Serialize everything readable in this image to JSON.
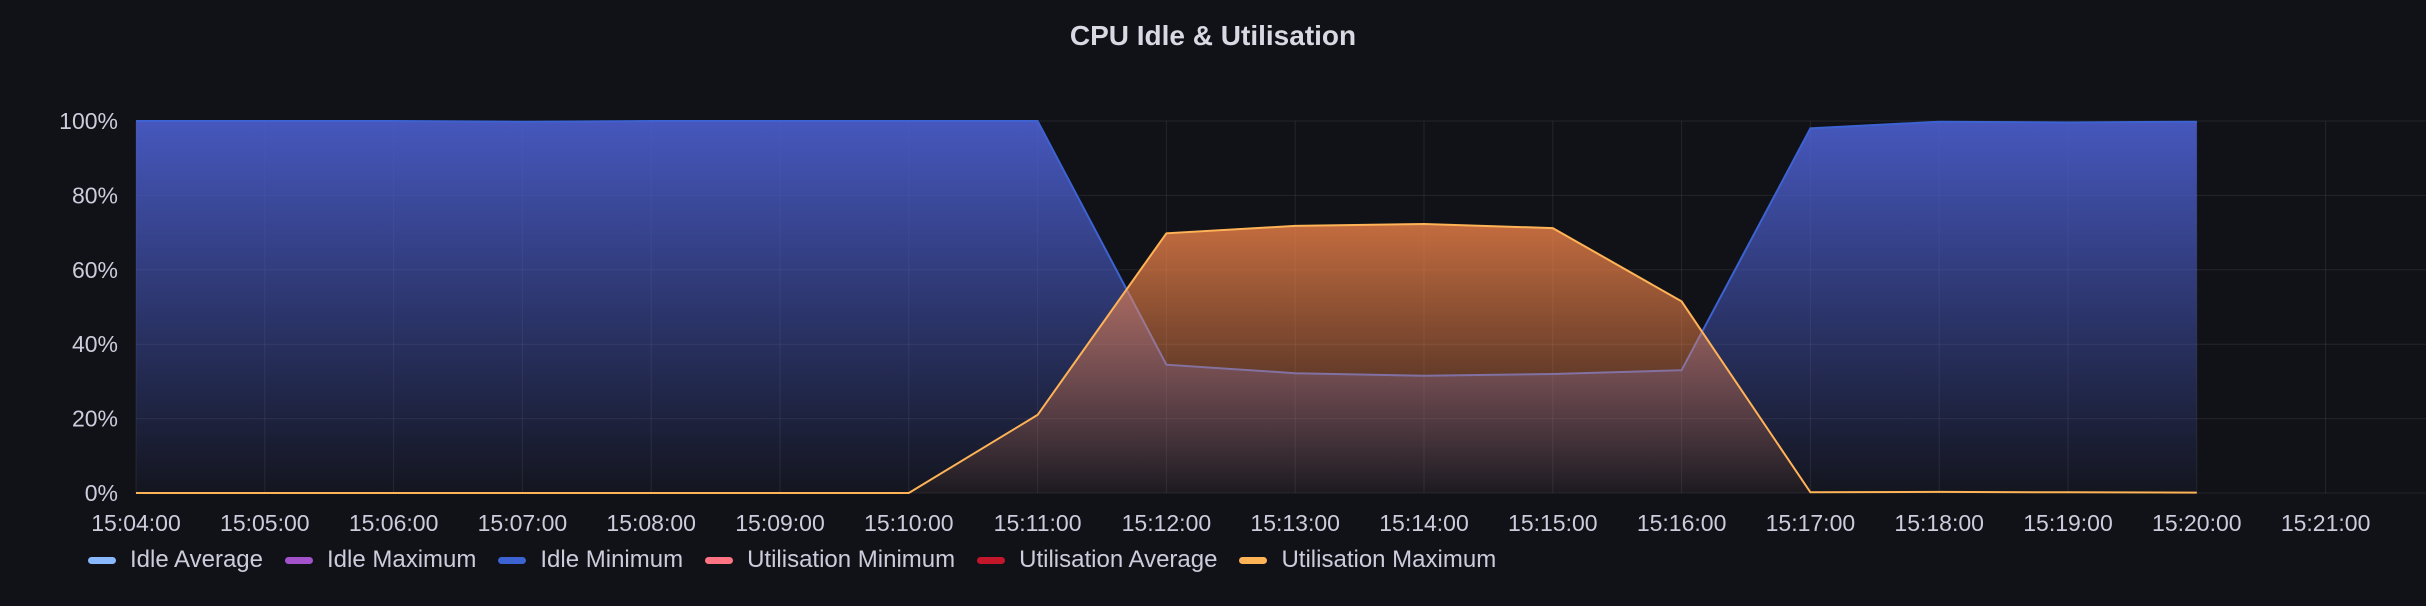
{
  "panel": {
    "title": "CPU Idle & Utilisation"
  },
  "chart_data": {
    "type": "area",
    "title": "CPU Idle & Utilisation",
    "x_ticks": [
      "15:04:00",
      "15:05:00",
      "15:06:00",
      "15:07:00",
      "15:08:00",
      "15:09:00",
      "15:10:00",
      "15:11:00",
      "15:12:00",
      "15:13:00",
      "15:14:00",
      "15:15:00",
      "15:16:00",
      "15:17:00",
      "15:18:00",
      "15:19:00",
      "15:20:00",
      "15:21:00"
    ],
    "y_ticks": [
      "0%",
      "20%",
      "40%",
      "60%",
      "80%",
      "100%"
    ],
    "ylim": [
      0,
      100
    ],
    "grid": true,
    "legend_position": "bottom-left",
    "series": [
      {
        "name": "Idle Average",
        "color": "#8ab8ff",
        "x": [],
        "values": []
      },
      {
        "name": "Idle Maximum",
        "color": "#a352cc",
        "x": [],
        "values": []
      },
      {
        "name": "Idle Minimum",
        "color": "#3d63d2",
        "x": [
          "15:04:00",
          "15:05:00",
          "15:06:00",
          "15:07:00",
          "15:08:00",
          "15:09:00",
          "15:10:00",
          "15:11:00",
          "15:12:00",
          "15:13:00",
          "15:14:00",
          "15:15:00",
          "15:16:00",
          "15:17:00",
          "15:18:00",
          "15:19:00",
          "15:20:00"
        ],
        "values": [
          100,
          100,
          100,
          99.8,
          100,
          100,
          100,
          100,
          34.5,
          32.2,
          31.5,
          32,
          33,
          98,
          99.8,
          99.6,
          99.8
        ]
      },
      {
        "name": "Utilisation Minimum",
        "color": "#ff7383",
        "x": [],
        "values": []
      },
      {
        "name": "Utilisation Average",
        "color": "#c4162a",
        "x": [],
        "values": []
      },
      {
        "name": "Utilisation Maximum",
        "color": "#ffb357",
        "x": [
          "15:04:00",
          "15:05:00",
          "15:06:00",
          "15:07:00",
          "15:08:00",
          "15:09:00",
          "15:10:00",
          "15:11:00",
          "15:12:00",
          "15:13:00",
          "15:14:00",
          "15:15:00",
          "15:16:00",
          "15:17:00",
          "15:18:00",
          "15:19:00",
          "15:20:00"
        ],
        "values": [
          0,
          0,
          0,
          0,
          0,
          0,
          0,
          21,
          69.8,
          71.8,
          72.3,
          71.2,
          51.5,
          0.2,
          0.3,
          0.2,
          0.1
        ]
      }
    ]
  }
}
